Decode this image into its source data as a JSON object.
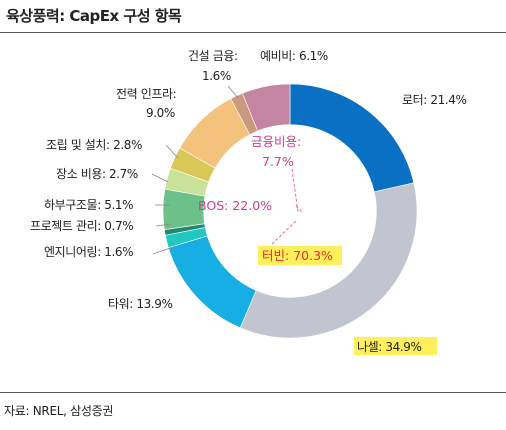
{
  "header": {
    "title": "육상풍력: CapEx 구성 항목"
  },
  "footer": {
    "source": "자료: NREL, 삼성증권"
  },
  "chart_data": {
    "type": "pie",
    "categories": [
      "로터",
      "나셀",
      "타워",
      "엔지니어링",
      "프로젝트 관리",
      "하부구조물",
      "장소 비용",
      "조립 및 설치",
      "전력 인프라",
      "건설 금융",
      "예비비"
    ],
    "values": [
      21.4,
      34.9,
      13.9,
      1.6,
      0.7,
      5.1,
      2.7,
      2.8,
      9.0,
      1.6,
      6.1
    ],
    "colors": [
      "#0a70c4",
      "#c2c5d0",
      "#17aee3",
      "#20c7c3",
      "#1f8a72",
      "#6cc18a",
      "#c8e29a",
      "#d9c857",
      "#f5c27e",
      "#c99a7c",
      "#c485a2"
    ],
    "slice_labels": [
      "로터: 21.4%",
      "나셀: 34.9%",
      "타워: 13.9%",
      "엔지니어링: 1.6%",
      "프로젝트 관리: 0.7%",
      "하부구조물: 5.1%",
      "장소 비용: 2.7%",
      "조립 및 설치: 2.8%",
      "전력 인프라:",
      "건설 금융:",
      "예비비: 6.1%"
    ],
    "slice_labels_line2": [
      "",
      "",
      "",
      "",
      "",
      "",
      "",
      "",
      "9.0%",
      "1.6%",
      ""
    ],
    "groups": [
      {
        "label": "터빈: 70.3%",
        "highlight": "#ffef5a"
      },
      {
        "label": "BOS: 22.0%"
      },
      {
        "label_line1": "금융비용:",
        "label_line2": "7.7%"
      }
    ],
    "inner_radius_ratio": 0.68
  }
}
